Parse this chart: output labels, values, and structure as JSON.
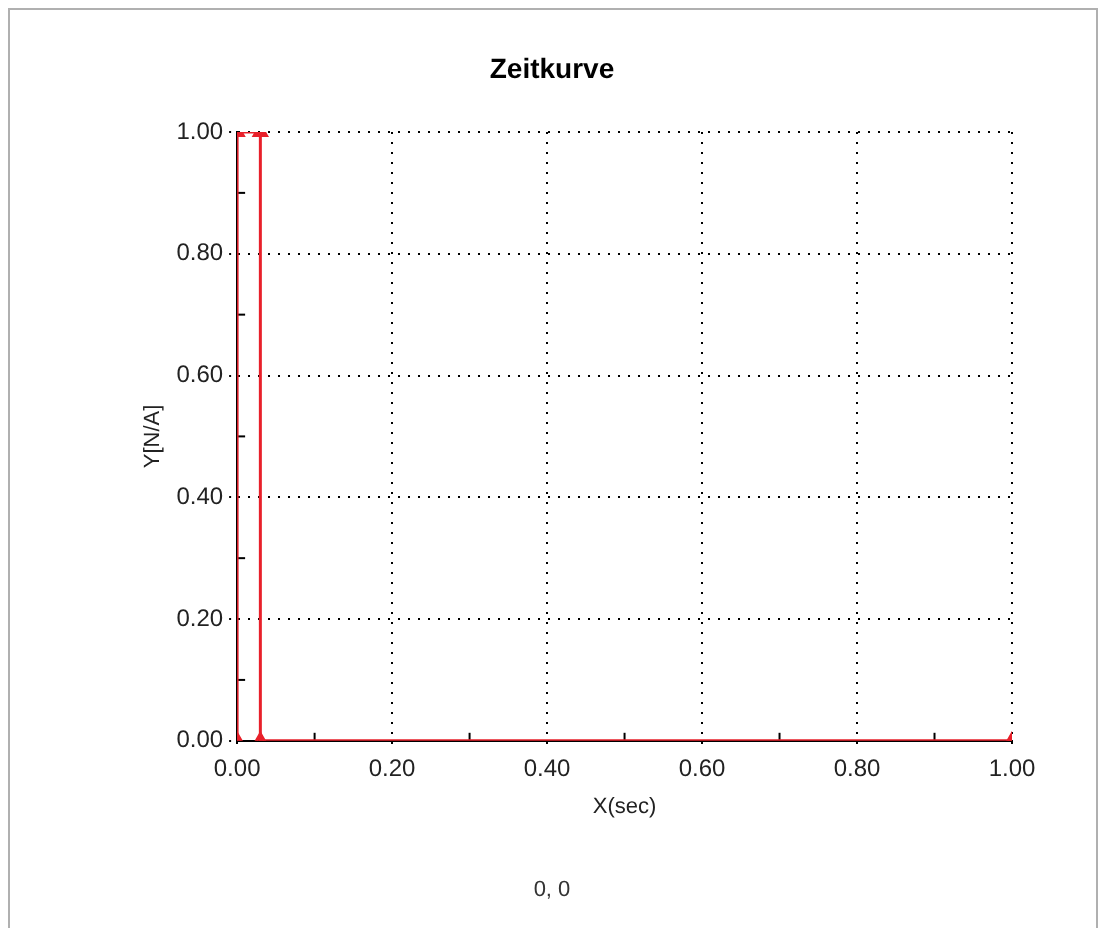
{
  "chart_data": {
    "type": "line",
    "title": "Zeitkurve",
    "xlabel": "X(sec)",
    "ylabel": "Y[N/A]",
    "x": [
      0,
      0,
      0.03,
      0.03,
      1
    ],
    "series": [
      {
        "color": "#e8202a",
        "values": [
          0,
          1,
          1,
          0,
          0
        ]
      }
    ],
    "xlim": [
      0,
      1
    ],
    "xticks": [
      {
        "value": 0,
        "label": "0.00"
      },
      {
        "value": 0.2,
        "label": "0.20"
      },
      {
        "value": 0.4,
        "label": "0.40"
      },
      {
        "value": 0.6,
        "label": "0.60"
      },
      {
        "value": 0.8,
        "label": "0.80"
      },
      {
        "value": 1,
        "label": "1.00"
      }
    ],
    "ylim": [
      0,
      1
    ],
    "yticks": [
      {
        "value": 0,
        "label": "0.00"
      },
      {
        "value": 0.2,
        "label": "0.20"
      },
      {
        "value": 0.4,
        "label": "0.40"
      },
      {
        "value": 0.6,
        "label": "0.60"
      },
      {
        "value": 0.8,
        "label": "0.80"
      },
      {
        "value": 1,
        "label": "1.00"
      }
    ],
    "grid": true,
    "marker": "triangle",
    "line_style": "solid",
    "legend": false,
    "annotations": [
      "0, 0"
    ]
  }
}
